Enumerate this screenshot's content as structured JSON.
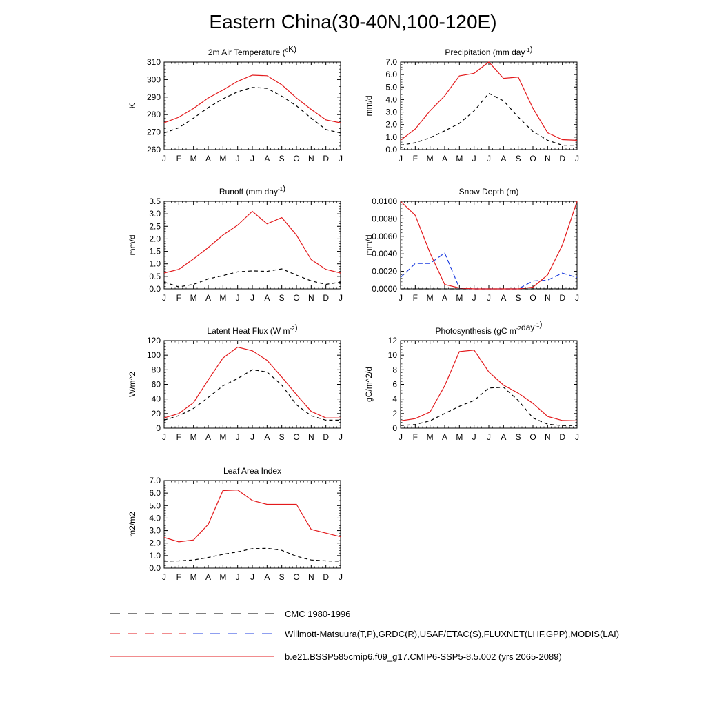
{
  "title": "Eastern China(30-40N,100-120E)",
  "months": [
    "J",
    "F",
    "M",
    "A",
    "M",
    "J",
    "J",
    "A",
    "S",
    "O",
    "N",
    "D",
    "J"
  ],
  "colors": {
    "obs": "#000000",
    "model": "#e31a1c",
    "snow_obs": "#1f3fe0"
  },
  "legend": [
    {
      "label": "CMC 1980-1996",
      "style": "dash-black"
    },
    {
      "label": "Willmott-Matsuura(T,P),GRDC(R),USAF/ETAC(S),FLUXNET(LHF,GPP),MODIS(LAI)",
      "style": "dash-red-blue"
    },
    {
      "label": "b.e21.BSSP585cmip6.f09_g17.CMIP6-SSP5-8.5.002 (yrs 2065-2089)",
      "style": "solid-red"
    }
  ],
  "chart_data": [
    {
      "type": "line",
      "title": "2m Air Temperature (",
      "title_sup": "o",
      "title_after": "K)",
      "ylabel": "K",
      "ylim": [
        260,
        310
      ],
      "yticks": [
        260,
        270,
        280,
        290,
        300,
        310
      ],
      "ytick_labels": [
        "260",
        "270",
        "280",
        "290",
        "300",
        "310"
      ],
      "series": [
        {
          "name": "obs",
          "style": "dash",
          "values": [
            269.5,
            272.5,
            278,
            284,
            289,
            293,
            295.5,
            295,
            290.5,
            285,
            278,
            271.5,
            269.5
          ]
        },
        {
          "name": "model",
          "style": "solid",
          "values": [
            275.3,
            278.5,
            283.5,
            289.5,
            294,
            299,
            302.5,
            302.2,
            297,
            289.5,
            283,
            277,
            275.3
          ]
        }
      ]
    },
    {
      "type": "line",
      "title": "Precipitation (mm day",
      "title_sup": "-1",
      "title_after": ")",
      "ylabel": "mm/d",
      "ylim": [
        0,
        7
      ],
      "yticks": [
        0,
        1,
        2,
        3,
        4,
        5,
        6,
        7
      ],
      "ytick_labels": [
        "0.0",
        "1.0",
        "2.0",
        "3.0",
        "4.0",
        "5.0",
        "6.0",
        "7.0"
      ],
      "series": [
        {
          "name": "obs",
          "style": "dash",
          "values": [
            0.35,
            0.55,
            0.95,
            1.5,
            2.1,
            3.1,
            4.5,
            3.9,
            2.6,
            1.45,
            0.75,
            0.35,
            0.35
          ]
        },
        {
          "name": "model",
          "style": "solid",
          "values": [
            0.75,
            1.65,
            3.1,
            4.3,
            5.9,
            6.1,
            7.0,
            5.7,
            5.8,
            3.3,
            1.35,
            0.8,
            0.75
          ]
        }
      ]
    },
    {
      "type": "line",
      "title": "Runoff (mm day",
      "title_sup": "-1",
      "title_after": ")",
      "ylabel": "mm/d",
      "ylim": [
        0,
        3.5
      ],
      "yticks": [
        0,
        0.5,
        1,
        1.5,
        2,
        2.5,
        3,
        3.5
      ],
      "ytick_labels": [
        "0.0",
        "0.5",
        "1.0",
        "1.5",
        "2.0",
        "2.5",
        "3.0",
        "3.5"
      ],
      "series": [
        {
          "name": "obs",
          "style": "dash",
          "values": [
            0.27,
            0.08,
            0.18,
            0.4,
            0.53,
            0.68,
            0.72,
            0.7,
            0.8,
            0.55,
            0.32,
            0.18,
            0.27
          ]
        },
        {
          "name": "model",
          "style": "solid",
          "values": [
            0.63,
            0.78,
            1.2,
            1.65,
            2.15,
            2.55,
            3.1,
            2.6,
            2.85,
            2.15,
            1.17,
            0.78,
            0.63
          ]
        }
      ]
    },
    {
      "type": "line",
      "title": "Snow Depth (m)",
      "title_sup": "",
      "title_after": "",
      "ylabel": "mm/d",
      "ylim": [
        0,
        0.01
      ],
      "yticks": [
        0,
        0.002,
        0.004,
        0.006,
        0.008,
        0.01
      ],
      "ytick_labels": [
        "0.0000",
        "0.0020",
        "0.0040",
        "0.0060",
        "0.0080",
        "0.0100"
      ],
      "series": [
        {
          "name": "obs_cmc",
          "style": "dash",
          "values": [
            0,
            0,
            0,
            0,
            0,
            0,
            0,
            0,
            0,
            0,
            0,
            0,
            0
          ]
        },
        {
          "name": "obs_usaf",
          "style": "dash-blue",
          "values": [
            0.0013,
            0.0029,
            0.0029,
            0.0041,
            0.0001,
            0,
            0,
            0,
            0,
            0.0009,
            0.001,
            0.0018,
            0.0013
          ]
        },
        {
          "name": "model",
          "style": "solid",
          "values": [
            0.01,
            0.0084,
            0.0041,
            0.0005,
            0.0001,
            0,
            0,
            0,
            0,
            0.0002,
            0.0016,
            0.005,
            0.01
          ]
        }
      ]
    },
    {
      "type": "line",
      "title": "Latent Heat Flux (W m",
      "title_sup": "-2",
      "title_after": ")",
      "ylabel": "W/m^2",
      "ylim": [
        0,
        120
      ],
      "yticks": [
        0,
        20,
        40,
        60,
        80,
        100,
        120
      ],
      "ytick_labels": [
        "0",
        "20",
        "40",
        "60",
        "80",
        "100",
        "120"
      ],
      "series": [
        {
          "name": "obs",
          "style": "dash",
          "values": [
            11,
            17,
            27,
            42,
            58,
            68,
            80,
            77,
            59,
            32,
            17,
            11,
            11
          ]
        },
        {
          "name": "model",
          "style": "solid",
          "values": [
            14,
            20,
            35,
            66,
            96,
            111,
            106,
            93,
            70,
            46,
            23,
            14,
            14
          ]
        }
      ]
    },
    {
      "type": "line",
      "title": "Photosynthesis (gC m",
      "title_sup": "-2",
      "title_after": "day",
      "title_sup2": "-1",
      "title_after2": ")",
      "ylabel": "gC/m^2/d",
      "ylim": [
        0,
        12
      ],
      "yticks": [
        0,
        2,
        4,
        6,
        8,
        10,
        12
      ],
      "ytick_labels": [
        "0",
        "2",
        "4",
        "6",
        "8",
        "10",
        "12"
      ],
      "series": [
        {
          "name": "obs",
          "style": "dash",
          "values": [
            0.35,
            0.5,
            1.0,
            2.0,
            3.0,
            3.8,
            5.5,
            5.6,
            3.8,
            1.4,
            0.55,
            0.35,
            0.35
          ]
        },
        {
          "name": "model",
          "style": "solid",
          "values": [
            1.0,
            1.3,
            2.2,
            5.8,
            10.5,
            10.7,
            7.7,
            5.9,
            4.8,
            3.4,
            1.6,
            1.05,
            1.0
          ]
        }
      ]
    },
    {
      "type": "line",
      "title": "Leaf Area Index",
      "title_sup": "",
      "title_after": "",
      "ylabel": "m2/m2",
      "ylim": [
        0,
        7
      ],
      "yticks": [
        0,
        1,
        2,
        3,
        4,
        5,
        6,
        7
      ],
      "ytick_labels": [
        "0.0",
        "1.0",
        "2.0",
        "3.0",
        "4.0",
        "5.0",
        "6.0",
        "7.0"
      ],
      "series": [
        {
          "name": "obs",
          "style": "dash",
          "values": [
            0.55,
            0.58,
            0.65,
            0.85,
            1.1,
            1.3,
            1.55,
            1.58,
            1.42,
            0.95,
            0.65,
            0.58,
            0.55
          ]
        },
        {
          "name": "model",
          "style": "solid",
          "values": [
            2.45,
            2.1,
            2.25,
            3.5,
            6.2,
            6.25,
            5.4,
            5.1,
            5.1,
            5.1,
            3.1,
            2.8,
            2.5
          ]
        }
      ]
    }
  ]
}
